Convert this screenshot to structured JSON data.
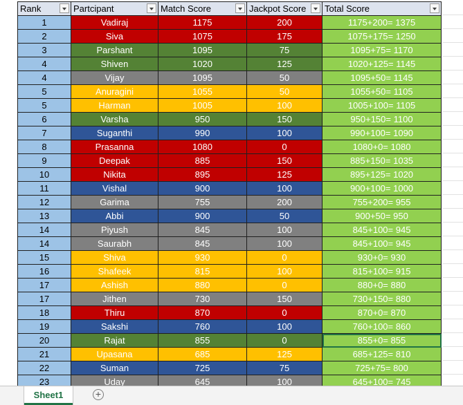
{
  "headers": [
    "Rank",
    "Partcipant",
    "Match Score",
    "Jackpot Score",
    "Total Score"
  ],
  "rows": [
    {
      "rank": "1",
      "name": "Vadiraj",
      "match": "1175",
      "jackpot": "200",
      "total": "1175+200= 1375",
      "color": "red"
    },
    {
      "rank": "2",
      "name": "Siva",
      "match": "1075",
      "jackpot": "175",
      "total": "1075+175= 1250",
      "color": "red"
    },
    {
      "rank": "3",
      "name": "Parshant",
      "match": "1095",
      "jackpot": "75",
      "total": "1095+75= 1170",
      "color": "green"
    },
    {
      "rank": "4",
      "name": "Shiven",
      "match": "1020",
      "jackpot": "125",
      "total": "1020+125= 1145",
      "color": "green"
    },
    {
      "rank": "4",
      "name": "Vijay",
      "match": "1095",
      "jackpot": "50",
      "total": "1095+50= 1145",
      "color": "gray"
    },
    {
      "rank": "5",
      "name": "Anuragini",
      "match": "1055",
      "jackpot": "50",
      "total": "1055+50= 1105",
      "color": "yellow"
    },
    {
      "rank": "5",
      "name": "Harman",
      "match": "1005",
      "jackpot": "100",
      "total": "1005+100= 1105",
      "color": "yellow"
    },
    {
      "rank": "6",
      "name": "Varsha",
      "match": "950",
      "jackpot": "150",
      "total": "950+150= 1100",
      "color": "green"
    },
    {
      "rank": "7",
      "name": "Suganthi",
      "match": "990",
      "jackpot": "100",
      "total": "990+100= 1090",
      "color": "blue"
    },
    {
      "rank": "8",
      "name": "Prasanna",
      "match": "1080",
      "jackpot": "0",
      "total": "1080+0= 1080",
      "color": "red"
    },
    {
      "rank": "9",
      "name": "Deepak",
      "match": "885",
      "jackpot": "150",
      "total": "885+150= 1035",
      "color": "red"
    },
    {
      "rank": "10",
      "name": "Nikita",
      "match": "895",
      "jackpot": "125",
      "total": "895+125= 1020",
      "color": "red"
    },
    {
      "rank": "11",
      "name": "Vishal",
      "match": "900",
      "jackpot": "100",
      "total": "900+100= 1000",
      "color": "blue"
    },
    {
      "rank": "12",
      "name": "Garima",
      "match": "755",
      "jackpot": "200",
      "total": "755+200= 955",
      "color": "gray"
    },
    {
      "rank": "13",
      "name": "Abbi",
      "match": "900",
      "jackpot": "50",
      "total": "900+50= 950",
      "color": "blue"
    },
    {
      "rank": "14",
      "name": "Piyush",
      "match": "845",
      "jackpot": "100",
      "total": "845+100= 945",
      "color": "gray"
    },
    {
      "rank": "14",
      "name": "Saurabh",
      "match": "845",
      "jackpot": "100",
      "total": "845+100= 945",
      "color": "gray"
    },
    {
      "rank": "15",
      "name": "Shiva",
      "match": "930",
      "jackpot": "0",
      "total": "930+0= 930",
      "color": "yellow"
    },
    {
      "rank": "16",
      "name": "Shafeek",
      "match": "815",
      "jackpot": "100",
      "total": "815+100= 915",
      "color": "yellow"
    },
    {
      "rank": "17",
      "name": "Ashish",
      "match": "880",
      "jackpot": "0",
      "total": "880+0= 880",
      "color": "yellow"
    },
    {
      "rank": "17",
      "name": "Jithen",
      "match": "730",
      "jackpot": "150",
      "total": "730+150= 880",
      "color": "gray"
    },
    {
      "rank": "18",
      "name": "Thiru",
      "match": "870",
      "jackpot": "0",
      "total": "870+0= 870",
      "color": "red"
    },
    {
      "rank": "19",
      "name": "Sakshi",
      "match": "760",
      "jackpot": "100",
      "total": "760+100= 860",
      "color": "blue"
    },
    {
      "rank": "20",
      "name": "Rajat",
      "match": "855",
      "jackpot": "0",
      "total": "855+0= 855",
      "color": "green",
      "selected": true
    },
    {
      "rank": "21",
      "name": "Upasana",
      "match": "685",
      "jackpot": "125",
      "total": "685+125= 810",
      "color": "yellow"
    },
    {
      "rank": "22",
      "name": "Suman",
      "match": "725",
      "jackpot": "75",
      "total": "725+75= 800",
      "color": "blue"
    },
    {
      "rank": "23",
      "name": "Uday",
      "match": "645",
      "jackpot": "100",
      "total": "645+100= 745",
      "color": "gray"
    }
  ],
  "colors": {
    "red": "#c00000",
    "green": "#548235",
    "gray": "#808080",
    "yellow": "#ffc000",
    "blue": "#2f5597",
    "rank_bg": "#9dc3e6",
    "total_bg": "#92d050",
    "header_bg": "#dde3ee",
    "accent": "#217346"
  },
  "sheet_tab": "Sheet1",
  "add_sheet_icon": "plus-circle-icon"
}
